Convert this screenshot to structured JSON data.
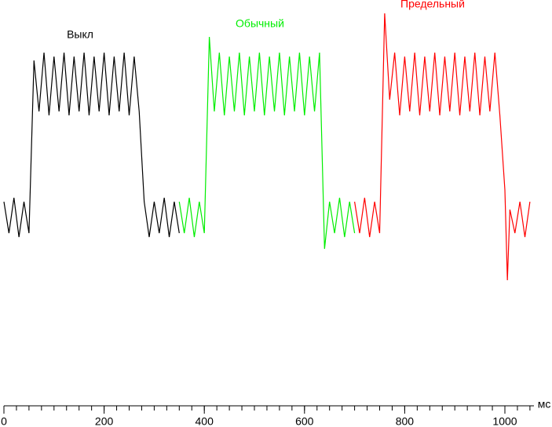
{
  "chart_data": {
    "type": "line",
    "annotations": [
      "Выкл",
      "Обычный",
      "Предельный"
    ],
    "x_label": "мс",
    "xlim": [
      0,
      1100
    ],
    "xticks": [
      0,
      200,
      400,
      600,
      800,
      1000
    ],
    "xminor": 25,
    "ylim": [
      0,
      100
    ],
    "series": [
      {
        "color": "#000000",
        "x": [
          0,
          10,
          20,
          30,
          40,
          50,
          60,
          70,
          80,
          90,
          100,
          110,
          120,
          130,
          140,
          150,
          160,
          170,
          180,
          190,
          200,
          210,
          220,
          230,
          240,
          250,
          260,
          270,
          280,
          290,
          300,
          310,
          320,
          330,
          340,
          350
        ],
        "values": [
          52,
          44,
          53,
          43,
          52,
          44,
          88,
          75,
          90,
          74,
          89,
          75,
          90,
          74,
          89,
          75,
          90,
          74,
          89,
          75,
          90,
          74,
          89,
          75,
          90,
          74,
          89,
          75,
          52,
          43,
          52,
          44,
          53,
          43,
          52,
          44
        ]
      },
      {
        "color": "#00ee00",
        "x": [
          350,
          360,
          370,
          380,
          390,
          400,
          410,
          420,
          430,
          440,
          450,
          460,
          470,
          480,
          490,
          500,
          510,
          520,
          530,
          540,
          550,
          560,
          570,
          580,
          590,
          600,
          610,
          620,
          630,
          640,
          650,
          660,
          670,
          680,
          690,
          700
        ],
        "values": [
          52,
          44,
          53,
          43,
          52,
          44,
          94,
          75,
          90,
          74,
          89,
          75,
          90,
          74,
          89,
          75,
          90,
          74,
          89,
          75,
          90,
          74,
          89,
          75,
          90,
          74,
          89,
          75,
          90,
          40,
          52,
          44,
          53,
          43,
          52,
          44
        ]
      },
      {
        "color": "#ff0000",
        "x": [
          700,
          710,
          720,
          730,
          740,
          750,
          760,
          770,
          780,
          790,
          800,
          810,
          820,
          830,
          840,
          850,
          860,
          870,
          880,
          890,
          900,
          910,
          920,
          930,
          940,
          950,
          960,
          970,
          980,
          990,
          1000,
          1005,
          1010,
          1020,
          1030,
          1040,
          1050
        ],
        "values": [
          52,
          44,
          53,
          43,
          52,
          44,
          100,
          78,
          90,
          74,
          89,
          75,
          90,
          74,
          89,
          75,
          90,
          74,
          89,
          75,
          90,
          74,
          89,
          75,
          90,
          74,
          89,
          75,
          90,
          74,
          55,
          32,
          50,
          44,
          52,
          43,
          52
        ]
      }
    ]
  }
}
